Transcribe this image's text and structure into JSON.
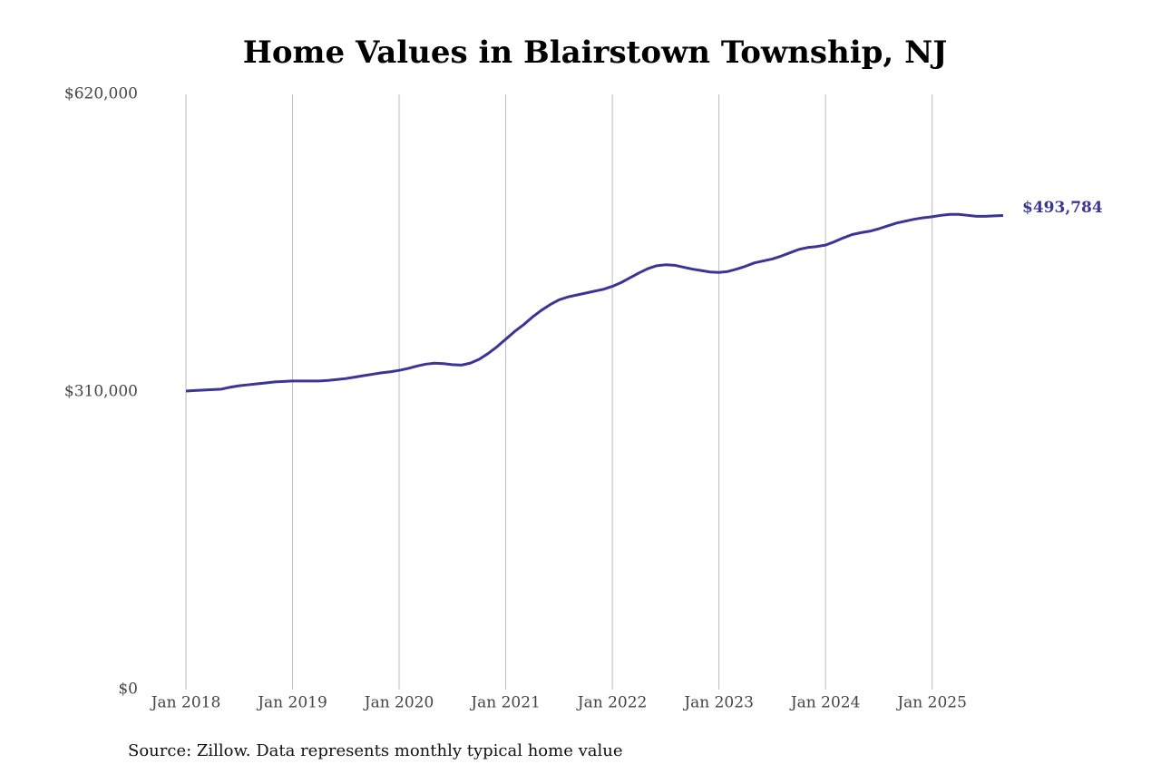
{
  "chart_data": {
    "type": "line",
    "title": "Home Values in Blairstown Township, NJ",
    "source": "Source: Zillow. Data represents monthly typical home value",
    "color": "#3b3596",
    "x": [
      "2018-01",
      "2018-02",
      "2018-03",
      "2018-04",
      "2018-05",
      "2018-06",
      "2018-07",
      "2018-08",
      "2018-09",
      "2018-10",
      "2018-11",
      "2018-12",
      "2019-01",
      "2019-02",
      "2019-03",
      "2019-04",
      "2019-05",
      "2019-06",
      "2019-07",
      "2019-08",
      "2019-09",
      "2019-10",
      "2019-11",
      "2019-12",
      "2020-01",
      "2020-02",
      "2020-03",
      "2020-04",
      "2020-05",
      "2020-06",
      "2020-07",
      "2020-08",
      "2020-09",
      "2020-10",
      "2020-11",
      "2020-12",
      "2021-01",
      "2021-02",
      "2021-03",
      "2021-04",
      "2021-05",
      "2021-06",
      "2021-07",
      "2021-08",
      "2021-09",
      "2021-10",
      "2021-11",
      "2021-12",
      "2022-01",
      "2022-02",
      "2022-03",
      "2022-04",
      "2022-05",
      "2022-06",
      "2022-07",
      "2022-08",
      "2022-09",
      "2022-10",
      "2022-11",
      "2022-12",
      "2023-01",
      "2023-02",
      "2023-03",
      "2023-04",
      "2023-05",
      "2023-06",
      "2023-07",
      "2023-08",
      "2023-09",
      "2023-10",
      "2023-11",
      "2023-12",
      "2024-01",
      "2024-02",
      "2024-03",
      "2024-04",
      "2024-05",
      "2024-06",
      "2024-07",
      "2024-08",
      "2024-09",
      "2024-10",
      "2024-11",
      "2024-12",
      "2025-01",
      "2025-02",
      "2025-03",
      "2025-04",
      "2025-05",
      "2025-06",
      "2025-07",
      "2025-08",
      "2025-09"
    ],
    "values": [
      311000,
      311500,
      312000,
      312500,
      313000,
      315000,
      316500,
      317500,
      318500,
      319500,
      320500,
      321000,
      321500,
      321500,
      321500,
      321500,
      322000,
      323000,
      324000,
      325500,
      327000,
      328500,
      330000,
      331000,
      332500,
      334500,
      337000,
      339000,
      340000,
      339500,
      338500,
      338000,
      340000,
      344000,
      350000,
      357000,
      365000,
      373000,
      380000,
      388000,
      395000,
      401000,
      406000,
      409000,
      411000,
      413000,
      415000,
      417000,
      420000,
      424000,
      429000,
      434000,
      438500,
      441500,
      442500,
      442000,
      440000,
      438000,
      436500,
      435000,
      434500,
      435500,
      438000,
      441000,
      444500,
      446500,
      448500,
      451500,
      455000,
      458500,
      460500,
      461500,
      463000,
      466500,
      470500,
      474000,
      476000,
      477500,
      480000,
      483000,
      486000,
      488000,
      490000,
      491500,
      492500,
      494000,
      495000,
      495000,
      494000,
      493000,
      493000,
      493500,
      493784
    ],
    "end_label": "$493,784",
    "xlim": [
      "2018-01",
      "2025-09"
    ],
    "xticks": [
      {
        "value": "2018-01",
        "label": "Jan 2018"
      },
      {
        "value": "2019-01",
        "label": "Jan 2019"
      },
      {
        "value": "2020-01",
        "label": "Jan 2020"
      },
      {
        "value": "2021-01",
        "label": "Jan 2021"
      },
      {
        "value": "2022-01",
        "label": "Jan 2022"
      },
      {
        "value": "2023-01",
        "label": "Jan 2023"
      },
      {
        "value": "2024-01",
        "label": "Jan 2024"
      },
      {
        "value": "2025-01",
        "label": "Jan 2025"
      }
    ],
    "ylim": [
      0,
      620000
    ],
    "yticks": [
      {
        "value": 0,
        "label": "$0"
      },
      {
        "value": 310000,
        "label": "$310,000"
      },
      {
        "value": 620000,
        "label": "$620,000"
      }
    ],
    "x_grid": true
  }
}
